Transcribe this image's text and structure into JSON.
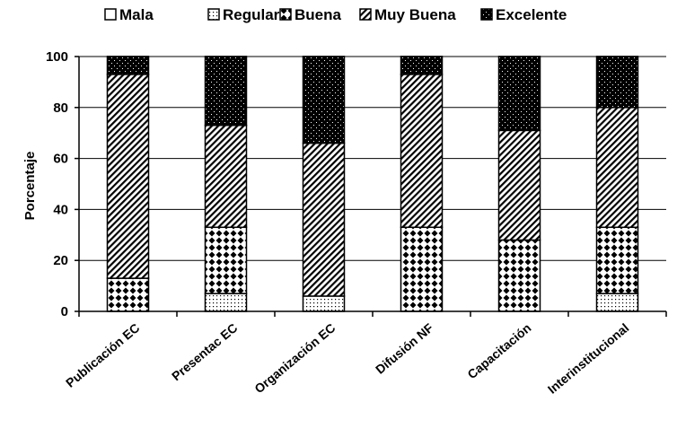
{
  "chart_data": {
    "type": "bar",
    "stacked": true,
    "title": "",
    "xlabel": "",
    "ylabel": "Porcentaje",
    "ylim": [
      0,
      100
    ],
    "yticks": [
      0,
      20,
      40,
      60,
      80,
      100
    ],
    "grid": true,
    "legend_position": "top",
    "categories": [
      "Publicación EC",
      "Presentac EC",
      "Organización EC",
      "Difusión NF",
      "Capacitación",
      "Interinstitucional"
    ],
    "series": [
      {
        "name": "Mala",
        "values": [
          0,
          0,
          0,
          0,
          0,
          0
        ],
        "pattern": "none"
      },
      {
        "name": "Regular",
        "values": [
          0,
          7,
          6,
          0,
          0,
          7
        ],
        "pattern": "dots"
      },
      {
        "name": "Buena",
        "values": [
          13,
          26,
          0,
          33,
          28,
          26
        ],
        "pattern": "checker"
      },
      {
        "name": "Muy Buena",
        "values": [
          80,
          40,
          60,
          60,
          43,
          47
        ],
        "pattern": "diagonal"
      },
      {
        "name": "Excelente",
        "values": [
          7,
          27,
          34,
          7,
          29,
          20
        ],
        "pattern": "dark"
      }
    ]
  }
}
